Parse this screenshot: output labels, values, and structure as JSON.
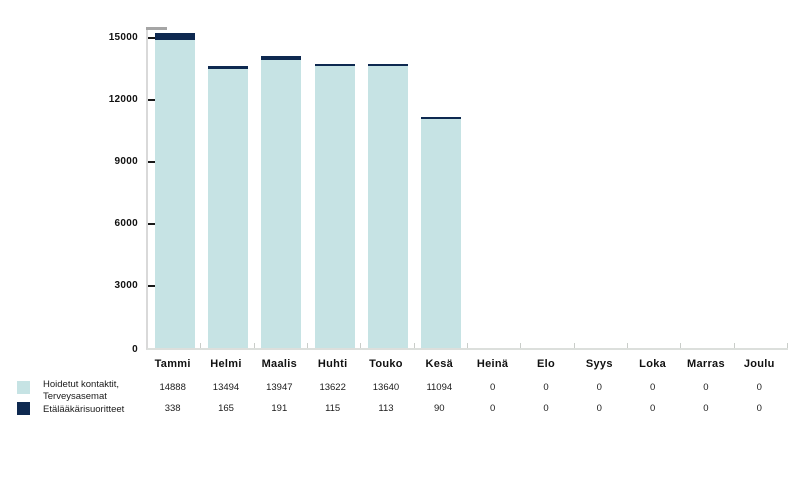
{
  "chart_data": {
    "type": "bar",
    "stacked": true,
    "title": "",
    "xlabel": "",
    "ylabel": "",
    "categories": [
      "Tammi",
      "Helmi",
      "Maalis",
      "Huhti",
      "Touko",
      "Kesä",
      "Heinä",
      "Elo",
      "Syys",
      "Loka",
      "Marras",
      "Joulu"
    ],
    "series": [
      {
        "name": "Hoidetut kontaktit, Terveysasemat",
        "label_lines": [
          "Hoidetut kontaktit,",
          "Terveysasemat"
        ],
        "color": "#c6e3e4",
        "values": [
          14888,
          13494,
          13947,
          13622,
          13640,
          11094,
          0,
          0,
          0,
          0,
          0,
          0
        ]
      },
      {
        "name": "Etälääkärisuoritteet",
        "label_lines": [
          "Etälääkärisuoritteet",
          ""
        ],
        "color": "#0e2950",
        "values": [
          338,
          165,
          191,
          115,
          113,
          90,
          0,
          0,
          0,
          0,
          0,
          0
        ]
      }
    ],
    "ylim": [
      0,
      15500
    ],
    "yticks": [
      0,
      3000,
      6000,
      9000,
      12000,
      15000
    ],
    "grid": false,
    "legend_position": "bottom-left"
  },
  "colors": {
    "series1": "#c6e3e4",
    "series2": "#0e2950",
    "axis": "#d9d9d9",
    "axis_cap": "#a5a5a5",
    "tick_dark": "#1a1a1a",
    "x_tick": "#c9cdc9",
    "text": "#1b1b1b"
  }
}
